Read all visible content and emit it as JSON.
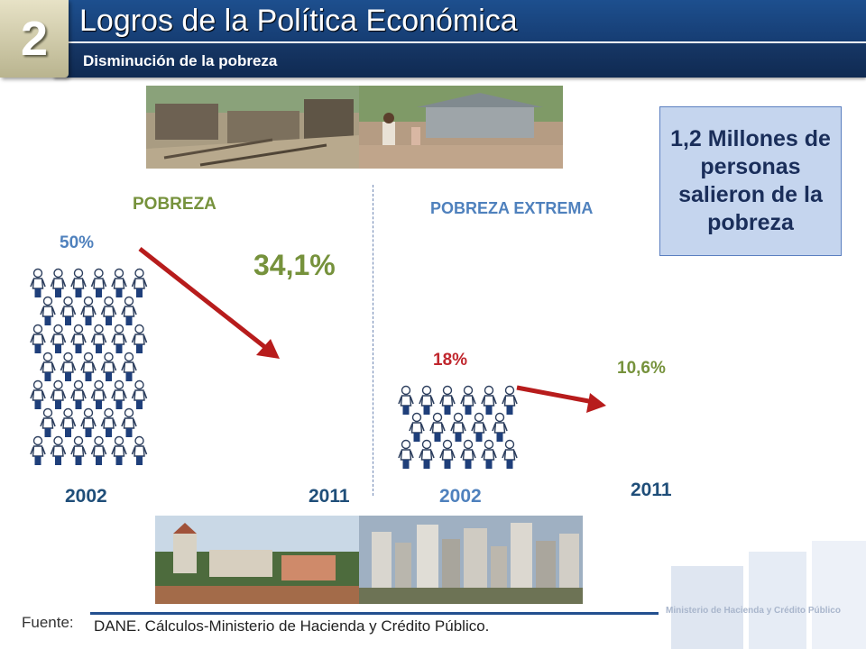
{
  "header": {
    "section_number": "2",
    "title": "Logros de la Política Económica",
    "subtitle": "Disminución de la pobreza"
  },
  "poverty": {
    "label": "POBREZA",
    "start_value": "50%",
    "end_value": "34,1%",
    "start_year": "2002",
    "end_year": "2011"
  },
  "extreme_poverty": {
    "label": "POBREZA EXTREMA",
    "start_value": "18%",
    "end_value": "10,6%",
    "start_year": "2002",
    "end_year": "2011"
  },
  "callout": {
    "text": "1,2 Millones de personas salieron de la pobreza"
  },
  "footer": {
    "label": "Fuente:",
    "source": "DANE. Cálculos-Ministerio de Hacienda y Crédito Público.",
    "ministry": "Ministerio de Hacienda y Crédito Público"
  },
  "colors": {
    "header_blue": "#1d4f8e",
    "arrow_red": "#b71c1c",
    "label_green": "#76923c",
    "label_blue": "#4f81bd",
    "value_red": "#c0262d",
    "year_blue": "#1f4e79"
  }
}
